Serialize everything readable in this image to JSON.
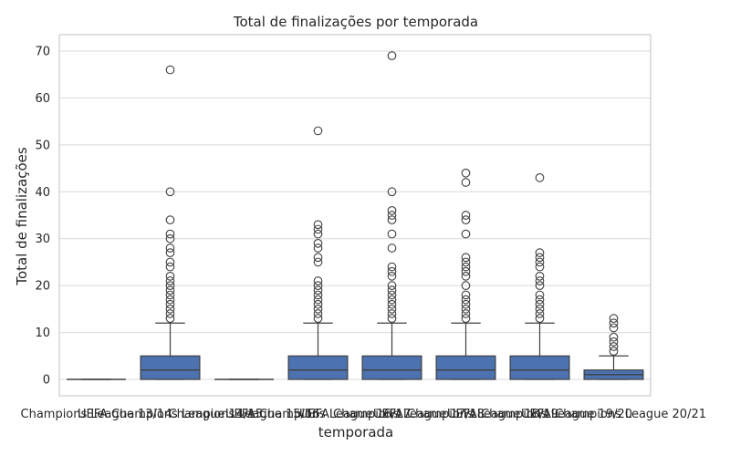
{
  "chart_data": {
    "type": "box",
    "title": "Total de finalizações por temporada",
    "xlabel": "temporada",
    "ylabel": "Total de finalizações",
    "ylim": [
      -3.5,
      73.5
    ],
    "yticks": [
      0,
      10,
      20,
      30,
      40,
      50,
      60,
      70
    ],
    "grid": true,
    "box_color": "#4c72b0",
    "categories": [
      "Champions League 13/14",
      "UEFA Champions League 14/15",
      "Champions League 15/16",
      "UEFA Champions League 16/17",
      "UEFA Champions League 17/18",
      "UEFA Champions League 18/19",
      "UEFA Champions League 19/20",
      "UEFA Champions League 20/21"
    ],
    "series": [
      {
        "q1": 0,
        "median": 0,
        "q3": 0,
        "whisker_low": 0,
        "whisker_high": 0,
        "outliers": []
      },
      {
        "q1": 0,
        "median": 2,
        "q3": 5,
        "whisker_low": 0,
        "whisker_high": 12,
        "outliers": [
          13,
          14,
          15,
          16,
          17,
          18,
          19,
          20,
          21,
          22,
          24,
          25,
          27,
          28,
          30,
          31,
          34,
          40,
          66
        ]
      },
      {
        "q1": 0,
        "median": 0,
        "q3": 0,
        "whisker_low": 0,
        "whisker_high": 0,
        "outliers": []
      },
      {
        "q1": 0,
        "median": 2,
        "q3": 5,
        "whisker_low": 0,
        "whisker_high": 12,
        "outliers": [
          13,
          14,
          15,
          16,
          17,
          18,
          19,
          20,
          21,
          25,
          26,
          28,
          29,
          31,
          32,
          33,
          53
        ]
      },
      {
        "q1": 0,
        "median": 2,
        "q3": 5,
        "whisker_low": 0,
        "whisker_high": 12,
        "outliers": [
          13,
          14,
          15,
          16,
          17,
          18,
          19,
          20,
          22,
          23,
          24,
          28,
          31,
          34,
          35,
          36,
          40,
          69
        ]
      },
      {
        "q1": 0,
        "median": 2,
        "q3": 5,
        "whisker_low": 0,
        "whisker_high": 12,
        "outliers": [
          13,
          14,
          15,
          16,
          17,
          18,
          20,
          22,
          23,
          24,
          25,
          26,
          31,
          34,
          35,
          42,
          44
        ]
      },
      {
        "q1": 0,
        "median": 2,
        "q3": 5,
        "whisker_low": 0,
        "whisker_high": 12,
        "outliers": [
          13,
          14,
          15,
          16,
          17,
          18,
          20,
          21,
          22,
          24,
          25,
          26,
          27,
          43
        ]
      },
      {
        "q1": 0,
        "median": 1,
        "q3": 2,
        "whisker_low": 0,
        "whisker_high": 5,
        "outliers": [
          6,
          7,
          8,
          9,
          11,
          12,
          13
        ]
      }
    ]
  }
}
